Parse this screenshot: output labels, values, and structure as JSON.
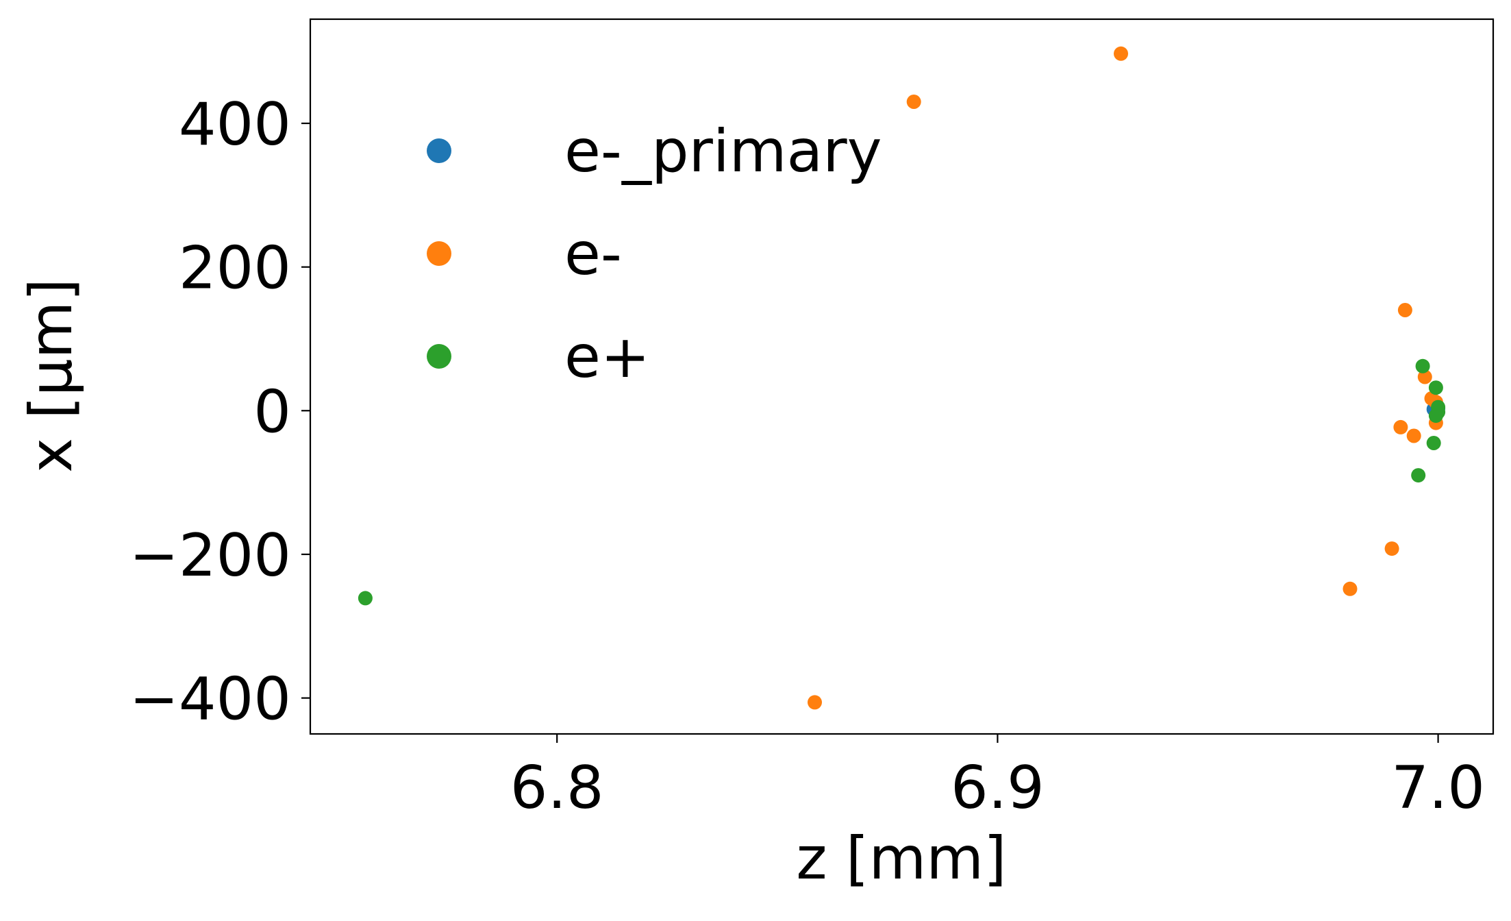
{
  "chart_data": {
    "type": "scatter",
    "title": "",
    "xlabel": "z [mm]",
    "ylabel": "x [μm]",
    "xlim": [
      6.744,
      7.0125
    ],
    "ylim": [
      -450,
      545
    ],
    "xticks": [
      6.8,
      6.9,
      7.0
    ],
    "xtick_labels": [
      "6.8",
      "6.9",
      "7.0"
    ],
    "yticks": [
      -400,
      -200,
      0,
      200,
      400
    ],
    "ytick_labels": [
      "−400",
      "−200",
      "0",
      "200",
      "400"
    ],
    "grid": false,
    "legend_position": "upper-left",
    "series": [
      {
        "name": "e-_primary",
        "color": "#1f77b4",
        "points": [
          {
            "x": 6.9995,
            "y": 8
          },
          {
            "x": 7.0,
            "y": 3
          },
          {
            "x": 6.999,
            "y": 2
          }
        ]
      },
      {
        "name": "e-",
        "color": "#ff7f0e",
        "points": [
          {
            "x": 6.928,
            "y": 497
          },
          {
            "x": 6.881,
            "y": 430
          },
          {
            "x": 6.9925,
            "y": 140
          },
          {
            "x": 6.997,
            "y": 47
          },
          {
            "x": 6.9985,
            "y": 17
          },
          {
            "x": 6.9995,
            "y": 12
          },
          {
            "x": 6.9995,
            "y": -17
          },
          {
            "x": 6.9915,
            "y": -23
          },
          {
            "x": 6.9945,
            "y": -35
          },
          {
            "x": 6.9895,
            "y": -192
          },
          {
            "x": 6.98,
            "y": -248
          },
          {
            "x": 6.8585,
            "y": -406
          }
        ]
      },
      {
        "name": "e+",
        "color": "#2ca02c",
        "points": [
          {
            "x": 6.9965,
            "y": 62
          },
          {
            "x": 6.9995,
            "y": 32
          },
          {
            "x": 7.0,
            "y": 5
          },
          {
            "x": 7.0,
            "y": -2
          },
          {
            "x": 6.9995,
            "y": -7
          },
          {
            "x": 6.999,
            "y": -45
          },
          {
            "x": 6.9955,
            "y": -90
          },
          {
            "x": 6.7565,
            "y": -261
          }
        ]
      }
    ]
  }
}
